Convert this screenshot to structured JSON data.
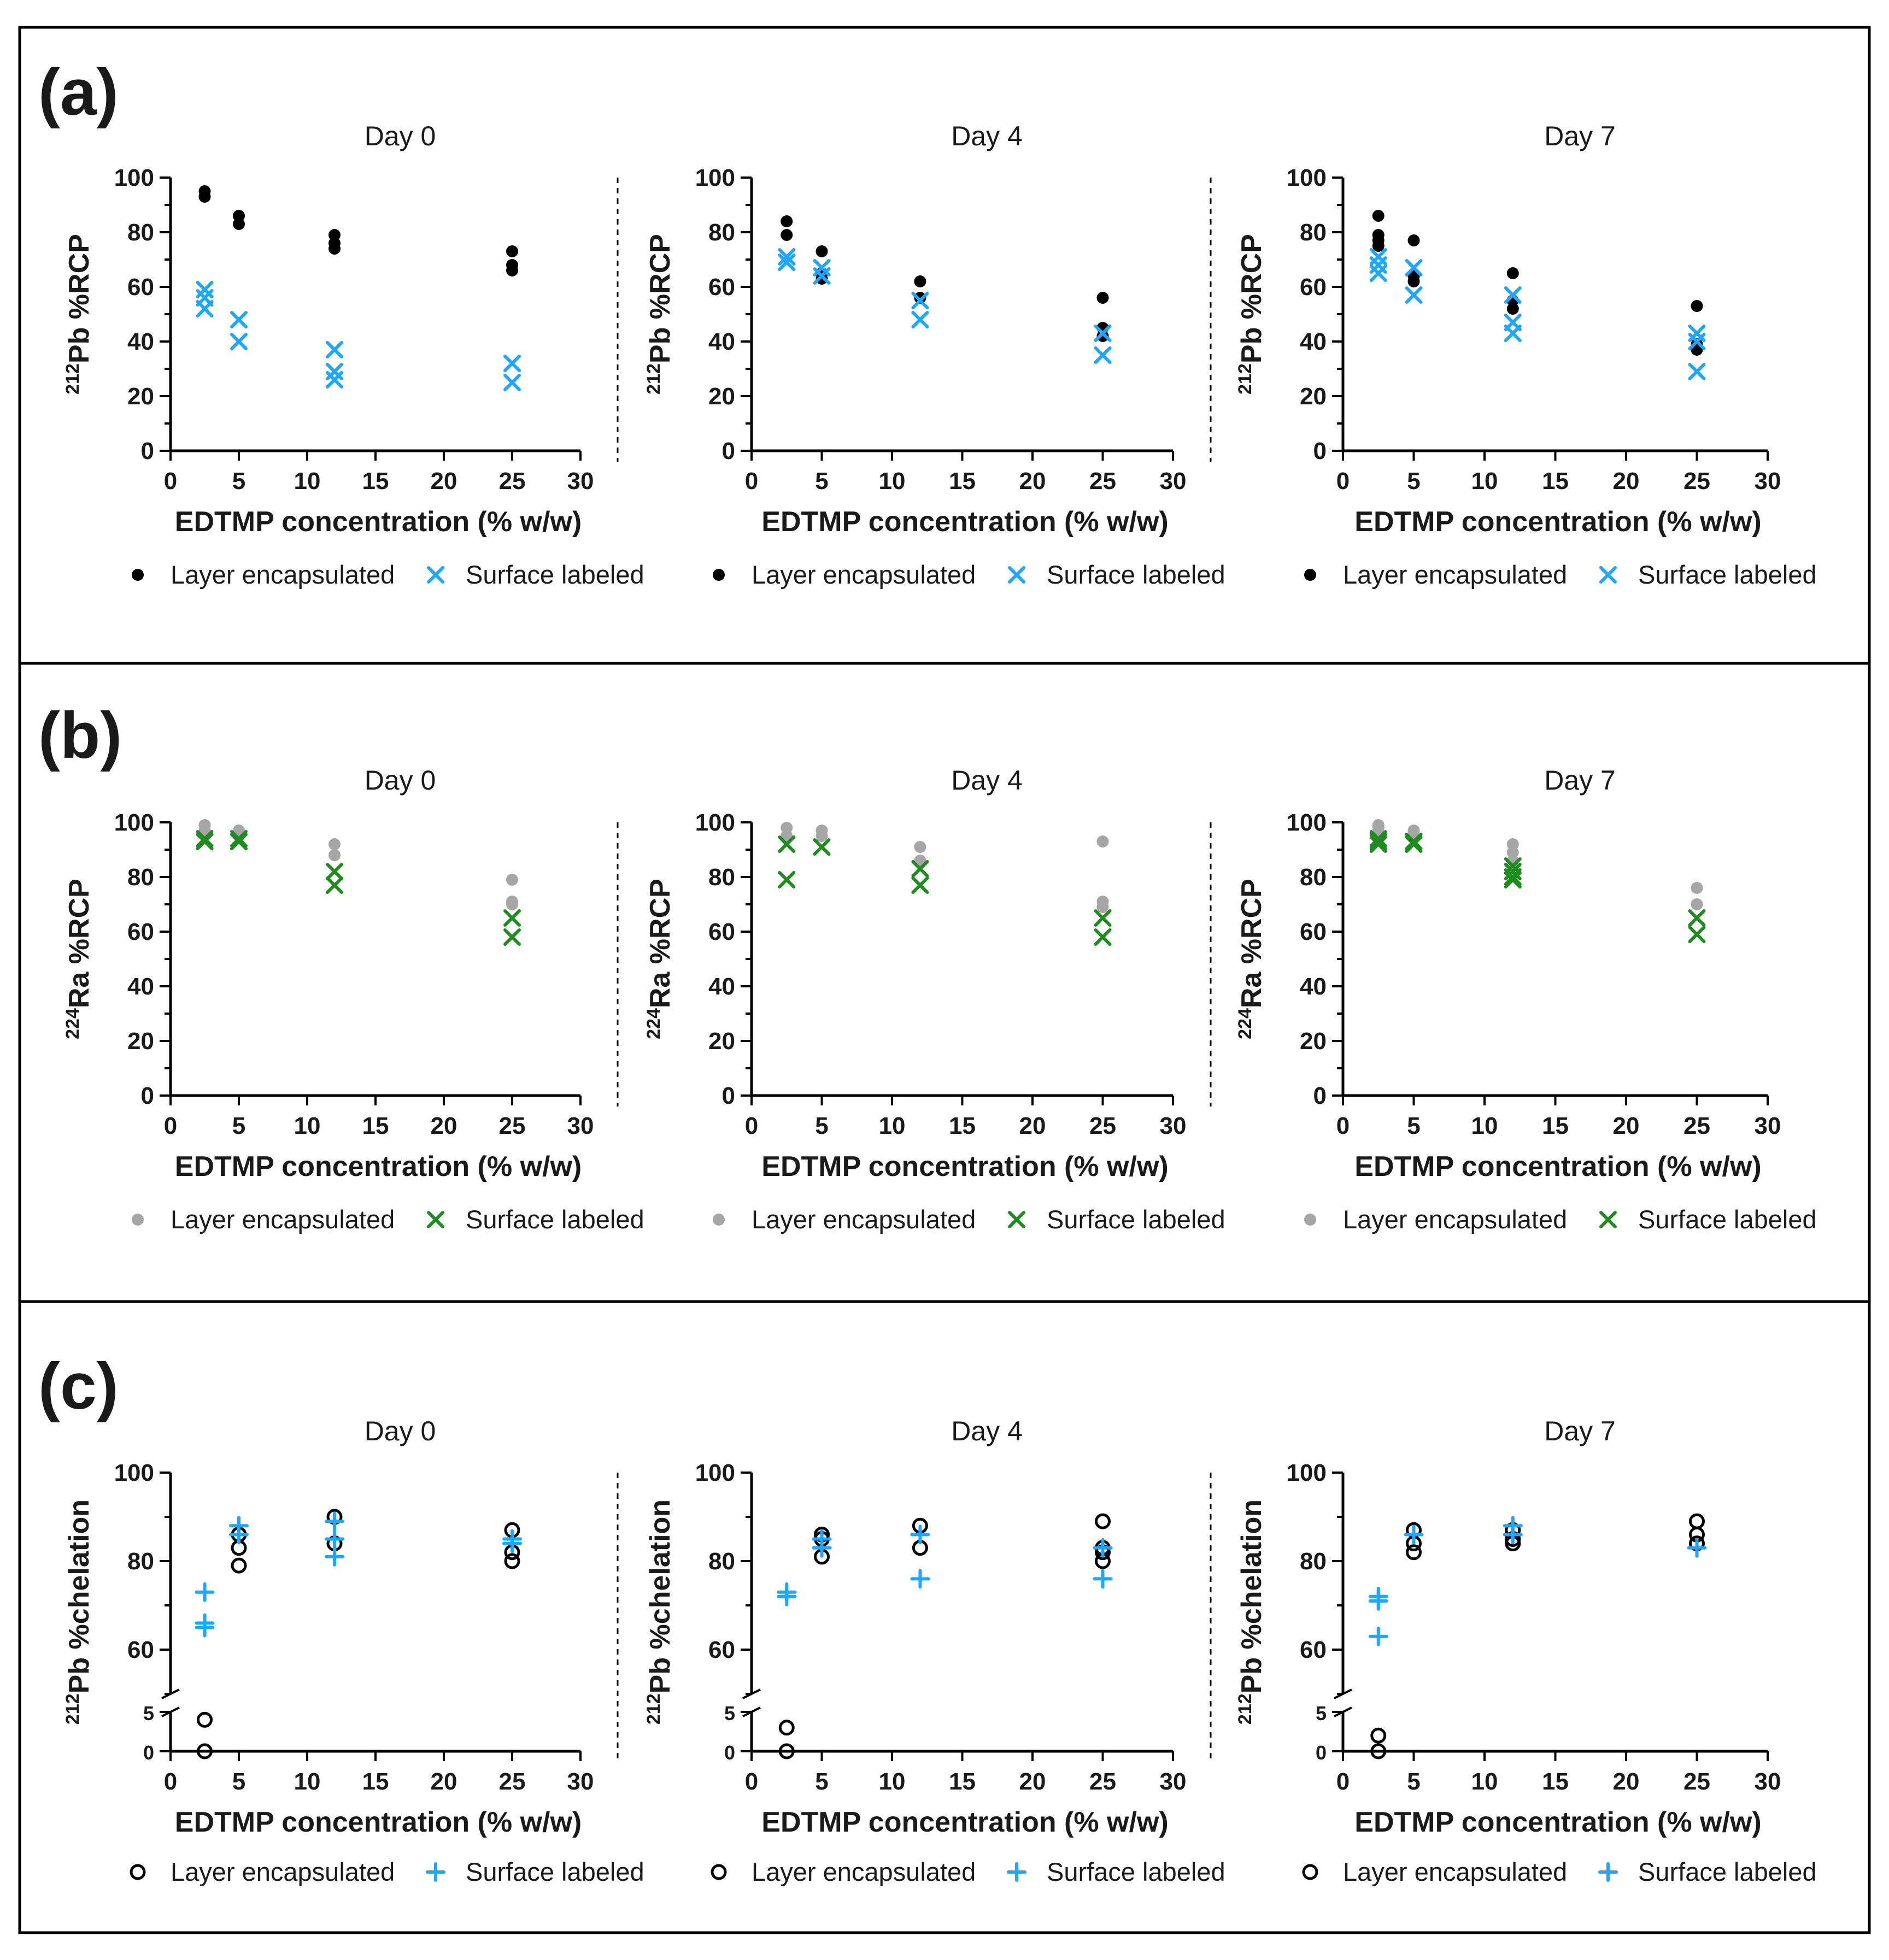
{
  "colors": {
    "black": "#000000",
    "blue": "#1ea7ff",
    "gray": "#a6a6a6",
    "green": "#1f8c1f"
  },
  "chart_data": [
    {
      "panel": "(a)",
      "type": "scatter",
      "ylabel_isotope": "212",
      "ylabel_text": "Pb %RCP",
      "ylim": [
        0,
        100
      ],
      "yticks": [
        0,
        20,
        40,
        60,
        80,
        100
      ],
      "break": false,
      "legend": {
        "series1": "Layer encapsulated",
        "series2": "Surface labeled"
      },
      "series_markers": [
        "dot",
        "x"
      ],
      "series_colors": [
        "black",
        "blue"
      ],
      "subplots": [
        {
          "title": "Day 0",
          "xlabel": "EDTMP concentration  (% w/w)",
          "xlim": [
            0,
            30
          ],
          "xticks": [
            0,
            5,
            10,
            15,
            20,
            25,
            30
          ],
          "series": [
            {
              "name": "Layer encapsulated",
              "x": [
                2.5,
                2.5,
                5,
                5,
                12,
                12,
                12,
                25,
                25,
                25
              ],
              "y": [
                95,
                93,
                86,
                83,
                79,
                76,
                74,
                73,
                68,
                66
              ]
            },
            {
              "name": "Surface labeled",
              "x": [
                2.5,
                2.5,
                2.5,
                5,
                5,
                12,
                12,
                12,
                25,
                25
              ],
              "y": [
                59,
                56,
                52,
                48,
                40,
                37,
                29,
                26,
                32,
                25
              ]
            }
          ]
        },
        {
          "title": "Day 4",
          "xlabel": "EDTMP concentration  (% w/w)",
          "xlim": [
            0,
            30
          ],
          "xticks": [
            0,
            5,
            10,
            15,
            20,
            25,
            30
          ],
          "series": [
            {
              "name": "Layer encapsulated",
              "x": [
                2.5,
                2.5,
                5,
                5,
                5,
                12,
                12,
                25,
                25,
                25
              ],
              "y": [
                84,
                79,
                73,
                65,
                63,
                62,
                56,
                56,
                45,
                42
              ]
            },
            {
              "name": "Surface labeled",
              "x": [
                2.5,
                2.5,
                5,
                5,
                12,
                12,
                25,
                25
              ],
              "y": [
                71,
                69,
                67,
                64,
                55,
                48,
                43,
                35
              ]
            }
          ]
        },
        {
          "title": "Day 7",
          "xlabel": "EDTMP concentration  (% w/w)",
          "xlim": [
            0,
            30
          ],
          "xticks": [
            0,
            5,
            10,
            15,
            20,
            25,
            30
          ],
          "series": [
            {
              "name": "Layer encapsulated",
              "x": [
                2.5,
                2.5,
                2.5,
                2.5,
                5,
                5,
                5,
                12,
                12,
                12,
                25,
                25,
                25
              ],
              "y": [
                86,
                79,
                77,
                75,
                77,
                64,
                62,
                65,
                55,
                52,
                53,
                39,
                37
              ]
            },
            {
              "name": "Surface labeled",
              "x": [
                2.5,
                2.5,
                2.5,
                5,
                5,
                12,
                12,
                12,
                25,
                25,
                25
              ],
              "y": [
                71,
                68,
                65,
                67,
                57,
                57,
                47,
                43,
                43,
                40,
                29
              ]
            }
          ]
        }
      ]
    },
    {
      "panel": "(b)",
      "type": "scatter",
      "ylabel_isotope": "224",
      "ylabel_text": "Ra %RCP",
      "ylim": [
        0,
        100
      ],
      "yticks": [
        0,
        20,
        40,
        60,
        80,
        100
      ],
      "break": false,
      "legend": {
        "series1": "Layer encapsulated",
        "series2": "Surface labeled"
      },
      "series_markers": [
        "dot",
        "x"
      ],
      "series_colors": [
        "gray",
        "green"
      ],
      "subplots": [
        {
          "title": "Day 0",
          "xlabel": "EDTMP concentration  (% w/w)",
          "xlim": [
            0,
            30
          ],
          "xticks": [
            0,
            5,
            10,
            15,
            20,
            25,
            30
          ],
          "series": [
            {
              "name": "Layer encapsulated",
              "x": [
                2.5,
                2.5,
                5,
                5,
                12,
                12,
                25,
                25,
                25
              ],
              "y": [
                99,
                97,
                97,
                95,
                92,
                88,
                79,
                71,
                70
              ]
            },
            {
              "name": "Surface labeled",
              "x": [
                2.5,
                2.5,
                5,
                5,
                12,
                12,
                25,
                25
              ],
              "y": [
                94,
                93,
                94,
                93,
                82,
                77,
                65,
                58
              ]
            }
          ]
        },
        {
          "title": "Day 4",
          "xlabel": "EDTMP concentration  (% w/w)",
          "xlim": [
            0,
            30
          ],
          "xticks": [
            0,
            5,
            10,
            15,
            20,
            25,
            30
          ],
          "series": [
            {
              "name": "Layer encapsulated",
              "x": [
                2.5,
                2.5,
                5,
                5,
                12,
                12,
                25,
                25,
                25
              ],
              "y": [
                98,
                95,
                97,
                95,
                91,
                86,
                93,
                71,
                69
              ]
            },
            {
              "name": "Surface labeled",
              "x": [
                2.5,
                2.5,
                5,
                12,
                12,
                25,
                25
              ],
              "y": [
                92,
                79,
                91,
                83,
                77,
                65,
                58
              ]
            }
          ]
        },
        {
          "title": "Day 7",
          "xlabel": "EDTMP concentration  (% w/w)",
          "xlim": [
            0,
            30
          ],
          "xticks": [
            0,
            5,
            10,
            15,
            20,
            25,
            30
          ],
          "series": [
            {
              "name": "Layer encapsulated",
              "x": [
                2.5,
                2.5,
                2.5,
                5,
                5,
                12,
                12,
                12,
                25,
                25
              ],
              "y": [
                99,
                98,
                96,
                97,
                95,
                92,
                89,
                86,
                76,
                70
              ]
            },
            {
              "name": "Surface labeled",
              "x": [
                2.5,
                2.5,
                2.5,
                5,
                5,
                12,
                12,
                12,
                12,
                25,
                25
              ],
              "y": [
                94,
                93,
                92,
                93,
                92,
                84,
                82,
                80,
                79,
                65,
                59
              ]
            }
          ]
        }
      ]
    },
    {
      "panel": "(c)",
      "type": "scatter",
      "ylabel_isotope": "212",
      "ylabel_text": "Pb %chelation",
      "break": true,
      "upper_ylim": [
        50,
        100
      ],
      "upper_yticks": [
        60,
        80,
        100
      ],
      "lower_ylim": [
        0,
        5
      ],
      "lower_yticks": [
        0,
        5
      ],
      "legend": {
        "series1": "Layer encapsulated",
        "series2": "Surface labeled"
      },
      "series_markers": [
        "circle",
        "plus"
      ],
      "series_colors": [
        "black",
        "blue"
      ],
      "subplots": [
        {
          "title": "Day 0",
          "xlabel": "EDTMP concentration  (% w/w)",
          "xlim": [
            0,
            30
          ],
          "xticks": [
            0,
            5,
            10,
            15,
            20,
            25,
            30
          ],
          "series": [
            {
              "name": "Layer encapsulated",
              "x": [
                2.5,
                2.5,
                5,
                5,
                5,
                12,
                12,
                25,
                25,
                25
              ],
              "y": [
                4,
                0,
                86,
                83,
                79,
                90,
                84,
                87,
                82,
                80
              ]
            },
            {
              "name": "Surface labeled",
              "x": [
                2.5,
                2.5,
                2.5,
                5,
                5,
                12,
                12,
                12,
                25,
                25
              ],
              "y": [
                73,
                66,
                65,
                88,
                86,
                89,
                85,
                81,
                85,
                84
              ]
            }
          ]
        },
        {
          "title": "Day 4",
          "xlabel": "EDTMP concentration  (% w/w)",
          "xlim": [
            0,
            30
          ],
          "xticks": [
            0,
            5,
            10,
            15,
            20,
            25,
            30
          ],
          "series": [
            {
              "name": "Layer encapsulated",
              "x": [
                2.5,
                2.5,
                5,
                5,
                5,
                12,
                12,
                25,
                25,
                25,
                25
              ],
              "y": [
                3,
                0,
                86,
                85,
                81,
                88,
                83,
                89,
                83,
                82,
                80
              ]
            },
            {
              "name": "Surface labeled",
              "x": [
                2.5,
                2.5,
                5,
                5,
                12,
                12,
                25,
                25
              ],
              "y": [
                73,
                72,
                85,
                83,
                86,
                76,
                83,
                76
              ]
            }
          ]
        },
        {
          "title": "Day 7",
          "xlabel": "EDTMP concentration  (% w/w)",
          "xlim": [
            0,
            30
          ],
          "xticks": [
            0,
            5,
            10,
            15,
            20,
            25,
            30
          ],
          "series": [
            {
              "name": "Layer encapsulated",
              "x": [
                2.5,
                2.5,
                5,
                5,
                5,
                12,
                12,
                12,
                25,
                25,
                25
              ],
              "y": [
                2,
                0,
                87,
                84,
                82,
                87,
                85,
                84,
                89,
                86,
                84
              ]
            },
            {
              "name": "Surface labeled",
              "x": [
                2.5,
                2.5,
                2.5,
                5,
                12,
                12,
                25
              ],
              "y": [
                72,
                71,
                63,
                86,
                88,
                86,
                83
              ]
            }
          ]
        }
      ]
    }
  ]
}
